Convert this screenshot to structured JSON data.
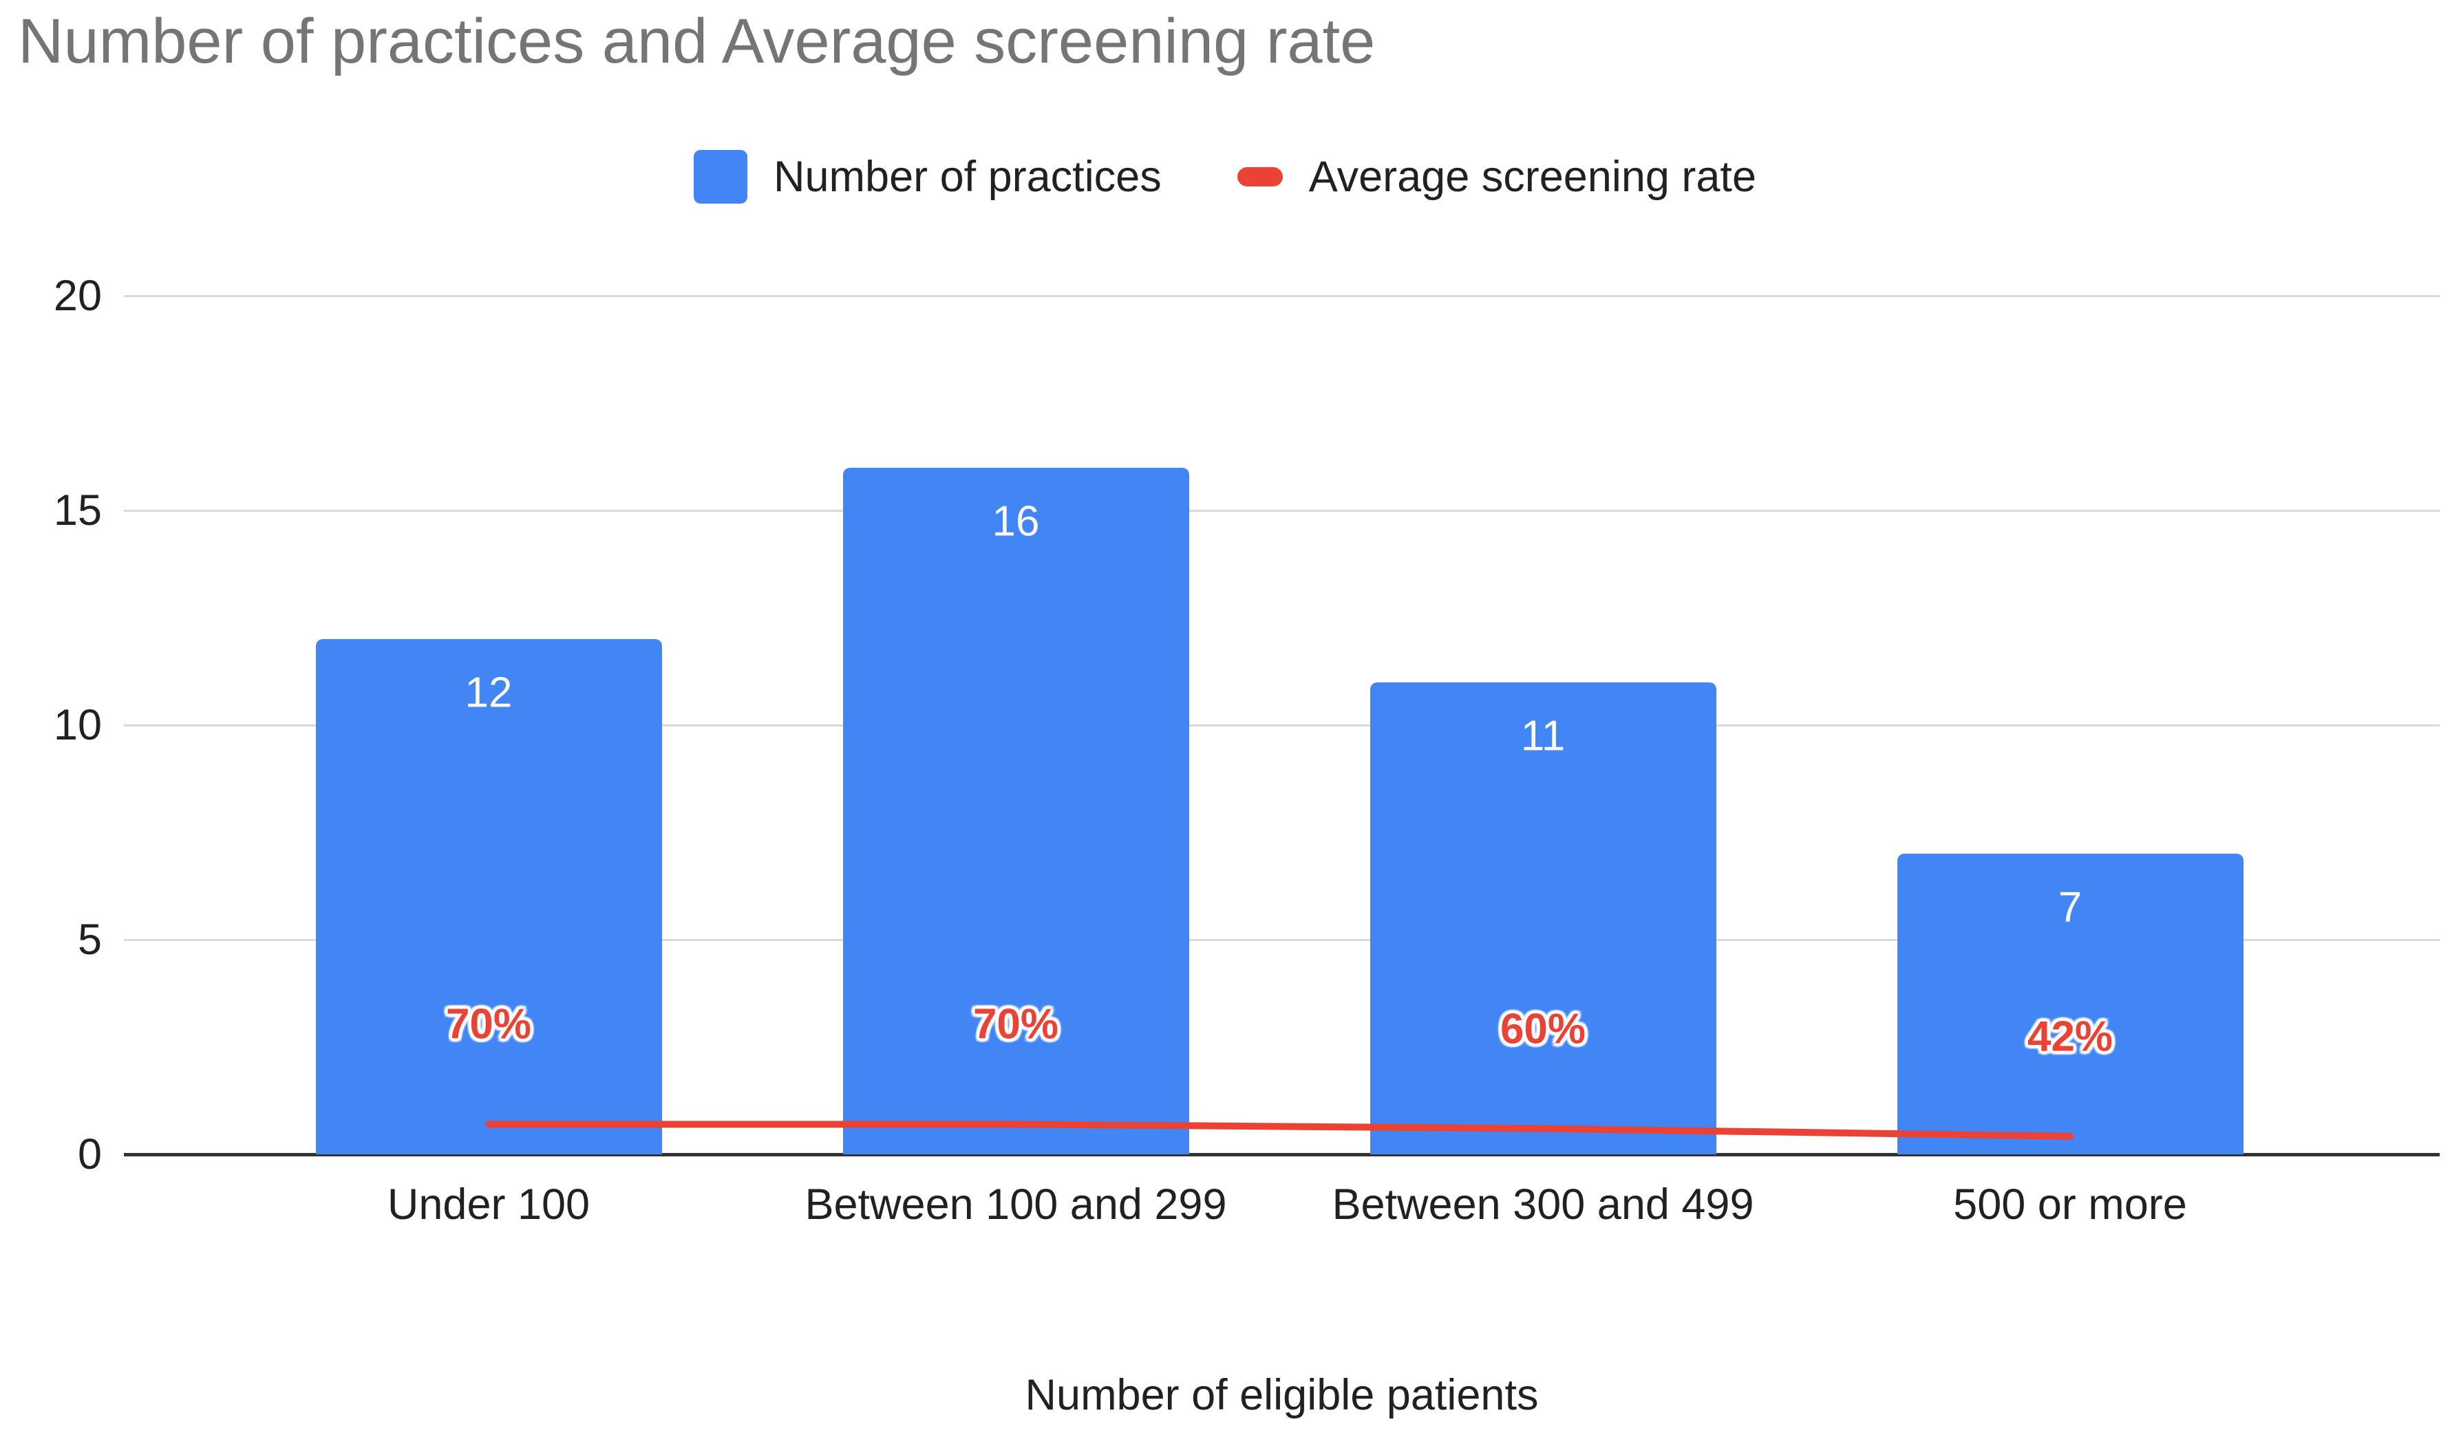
{
  "chart_data": {
    "type": "combo",
    "title": "Number of practices and Average screening rate",
    "xlabel": "Number of eligible patients",
    "ylabel": "",
    "categories": [
      "Under 100",
      "Between 100 and 299",
      "Between 300 and 499",
      "500 or more"
    ],
    "series": [
      {
        "name": "Number of practices",
        "type": "bar",
        "color": "#4285F4",
        "values": [
          12,
          16,
          11,
          7
        ],
        "value_labels": [
          "12",
          "16",
          "11",
          "7"
        ]
      },
      {
        "name": "Average screening rate",
        "type": "line",
        "color": "#EA4335",
        "values_percent": [
          70,
          70,
          60,
          42
        ],
        "data_labels": [
          "70%",
          "70%",
          "60%",
          "42%"
        ],
        "plotted_left_axis_values": [
          0.7,
          0.7,
          0.6,
          0.42
        ]
      }
    ],
    "ylim": [
      0,
      20
    ],
    "yticks": [
      0,
      5,
      10,
      15,
      20
    ],
    "grid": true,
    "legend_position": "top"
  },
  "colors": {
    "title_text": "#757575",
    "axis_text": "#212121",
    "gridline": "#DADADA",
    "baseline": "#333333",
    "bar": "#4285F4",
    "line": "#EA4335",
    "bar_value_text": "#FFFFFF"
  }
}
